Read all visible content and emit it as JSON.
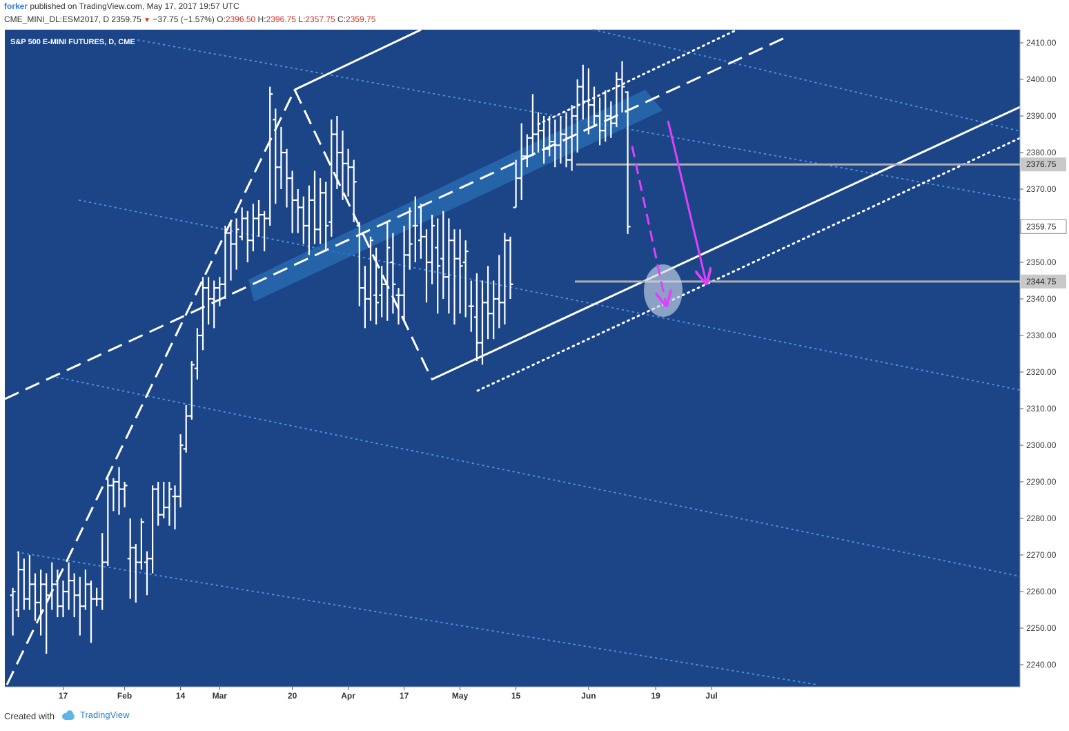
{
  "header": {
    "author": "forker",
    "published": "published on TradingView.com, May 17, 2017 19:57 UTC",
    "symbol": "CME_MINI_DL:ESM2017, D",
    "last": "2359.75",
    "change_arrow": "▼",
    "change": "−37.75 (−1.57%)",
    "open_label": "O:",
    "open": "2396.50",
    "high_label": "H:",
    "high": "2396.75",
    "low_label": "L:",
    "low": "2357.75",
    "close_label": "C:",
    "close": "2359.75"
  },
  "footer": {
    "created_with": "Created with",
    "brand": "TradingView"
  },
  "colors": {
    "background": "#1c4587",
    "bars": "#ffffff",
    "dotted_lines": "#4a90e2",
    "channel_band": "#2a6fb5",
    "horizontal_lines": "#b0b0b0",
    "arrows": "#e040fb",
    "highlight": "#c8d4e6"
  },
  "chart_data": {
    "type": "ohlc",
    "title": "S&P 500 E-MINI FUTURES, D, CME",
    "ylim": [
      2233,
      2415
    ],
    "y_ticks": [
      2410,
      2400,
      2390,
      2380,
      2370,
      2360,
      2350,
      2340,
      2330,
      2320,
      2310,
      2300,
      2290,
      2280,
      2270,
      2260,
      2250,
      2240
    ],
    "x_ticks": [
      {
        "day": 10,
        "label": "17"
      },
      {
        "day": 21,
        "label": "Feb"
      },
      {
        "day": 31,
        "label": "14"
      },
      {
        "day": 38,
        "label": "Mar"
      },
      {
        "day": 51,
        "label": "20"
      },
      {
        "day": 61,
        "label": "Apr"
      },
      {
        "day": 71,
        "label": "17"
      },
      {
        "day": 81,
        "label": "May"
      },
      {
        "day": 91,
        "label": "15"
      },
      {
        "day": 104,
        "label": "Jun"
      },
      {
        "day": 116,
        "label": "19"
      },
      {
        "day": 126,
        "label": "Jul"
      }
    ],
    "ohlc": [
      {
        "day": 1,
        "o": 2259,
        "h": 2261,
        "l": 2248,
        "c": 2260
      },
      {
        "day": 2,
        "o": 2255,
        "h": 2271,
        "l": 2253,
        "c": 2266
      },
      {
        "day": 3,
        "o": 2266,
        "h": 2269,
        "l": 2255,
        "c": 2258
      },
      {
        "day": 4,
        "o": 2258,
        "h": 2270,
        "l": 2255,
        "c": 2262
      },
      {
        "day": 5,
        "o": 2262,
        "h": 2265,
        "l": 2252,
        "c": 2257
      },
      {
        "day": 6,
        "o": 2257,
        "h": 2266,
        "l": 2248,
        "c": 2262
      },
      {
        "day": 7,
        "o": 2262,
        "h": 2265,
        "l": 2243,
        "c": 2259
      },
      {
        "day": 8,
        "o": 2259,
        "h": 2268,
        "l": 2255,
        "c": 2262
      },
      {
        "day": 9,
        "o": 2262,
        "h": 2266,
        "l": 2253,
        "c": 2256
      },
      {
        "day": 10,
        "o": 2256,
        "h": 2263,
        "l": 2253,
        "c": 2260
      },
      {
        "day": 11,
        "o": 2260,
        "h": 2268,
        "l": 2255,
        "c": 2263
      },
      {
        "day": 12,
        "o": 2263,
        "h": 2265,
        "l": 2253,
        "c": 2259
      },
      {
        "day": 13,
        "o": 2259,
        "h": 2264,
        "l": 2248,
        "c": 2256
      },
      {
        "day": 14,
        "o": 2256,
        "h": 2266,
        "l": 2255,
        "c": 2262
      },
      {
        "day": 15,
        "o": 2262,
        "h": 2263,
        "l": 2246,
        "c": 2258
      },
      {
        "day": 16,
        "o": 2258,
        "h": 2261,
        "l": 2256,
        "c": 2258
      },
      {
        "day": 17,
        "o": 2258,
        "h": 2276,
        "l": 2255,
        "c": 2268
      },
      {
        "day": 18,
        "o": 2268,
        "h": 2291,
        "l": 2267,
        "c": 2289
      },
      {
        "day": 19,
        "o": 2289,
        "h": 2291,
        "l": 2282,
        "c": 2290
      },
      {
        "day": 20,
        "o": 2290,
        "h": 2294,
        "l": 2281,
        "c": 2288
      },
      {
        "day": 21,
        "o": 2288,
        "h": 2290,
        "l": 2283,
        "c": 2289
      },
      {
        "day": 22,
        "o": 2269,
        "h": 2280,
        "l": 2258,
        "c": 2272
      },
      {
        "day": 23,
        "o": 2272,
        "h": 2273,
        "l": 2257,
        "c": 2268
      },
      {
        "day": 24,
        "o": 2268,
        "h": 2280,
        "l": 2266,
        "c": 2279
      },
      {
        "day": 25,
        "o": 2268,
        "h": 2271,
        "l": 2259,
        "c": 2269
      },
      {
        "day": 26,
        "o": 2269,
        "h": 2289,
        "l": 2265,
        "c": 2288
      },
      {
        "day": 27,
        "o": 2288,
        "h": 2290,
        "l": 2278,
        "c": 2281
      },
      {
        "day": 28,
        "o": 2281,
        "h": 2290,
        "l": 2280,
        "c": 2283
      },
      {
        "day": 29,
        "o": 2283,
        "h": 2290,
        "l": 2278,
        "c": 2288
      },
      {
        "day": 30,
        "o": 2286,
        "h": 2289,
        "l": 2277,
        "c": 2286
      },
      {
        "day": 31,
        "o": 2286,
        "h": 2303,
        "l": 2283,
        "c": 2300
      },
      {
        "day": 32,
        "o": 2299,
        "h": 2311,
        "l": 2298,
        "c": 2308
      },
      {
        "day": 33,
        "o": 2308,
        "h": 2323,
        "l": 2307,
        "c": 2322
      },
      {
        "day": 34,
        "o": 2321,
        "h": 2332,
        "l": 2318,
        "c": 2330
      },
      {
        "day": 35,
        "o": 2330,
        "h": 2346,
        "l": 2326,
        "c": 2343
      },
      {
        "day": 36,
        "o": 2343,
        "h": 2346,
        "l": 2333,
        "c": 2340
      },
      {
        "day": 37,
        "o": 2340,
        "h": 2345,
        "l": 2332,
        "c": 2343
      },
      {
        "day": 38,
        "o": 2343,
        "h": 2346,
        "l": 2338,
        "c": 2344
      },
      {
        "day": 39,
        "o": 2344,
        "h": 2360,
        "l": 2340,
        "c": 2358
      },
      {
        "day": 40,
        "o": 2358,
        "h": 2361,
        "l": 2345,
        "c": 2355
      },
      {
        "day": 41,
        "o": 2355,
        "h": 2362,
        "l": 2348,
        "c": 2359
      },
      {
        "day": 42,
        "o": 2357,
        "h": 2365,
        "l": 2356,
        "c": 2362
      },
      {
        "day": 43,
        "o": 2362,
        "h": 2364,
        "l": 2350,
        "c": 2356
      },
      {
        "day": 44,
        "o": 2356,
        "h": 2366,
        "l": 2353,
        "c": 2362
      },
      {
        "day": 45,
        "o": 2362,
        "h": 2367,
        "l": 2357,
        "c": 2363
      },
      {
        "day": 46,
        "o": 2363,
        "h": 2364,
        "l": 2353,
        "c": 2362
      },
      {
        "day": 47,
        "o": 2362,
        "h": 2398,
        "l": 2360,
        "c": 2396
      },
      {
        "day": 48,
        "o": 2389,
        "h": 2392,
        "l": 2366,
        "c": 2376
      },
      {
        "day": 49,
        "o": 2376,
        "h": 2387,
        "l": 2370,
        "c": 2380
      },
      {
        "day": 50,
        "o": 2380,
        "h": 2381,
        "l": 2365,
        "c": 2373
      },
      {
        "day": 51,
        "o": 2373,
        "h": 2375,
        "l": 2358,
        "c": 2367
      },
      {
        "day": 52,
        "o": 2367,
        "h": 2370,
        "l": 2358,
        "c": 2365
      },
      {
        "day": 53,
        "o": 2365,
        "h": 2368,
        "l": 2355,
        "c": 2360
      },
      {
        "day": 54,
        "o": 2360,
        "h": 2371,
        "l": 2352,
        "c": 2367
      },
      {
        "day": 55,
        "o": 2367,
        "h": 2375,
        "l": 2355,
        "c": 2359
      },
      {
        "day": 56,
        "o": 2359,
        "h": 2373,
        "l": 2355,
        "c": 2369
      },
      {
        "day": 57,
        "o": 2369,
        "h": 2372,
        "l": 2353,
        "c": 2360
      },
      {
        "day": 58,
        "o": 2361,
        "h": 2389,
        "l": 2357,
        "c": 2385
      },
      {
        "day": 59,
        "o": 2385,
        "h": 2390,
        "l": 2370,
        "c": 2380
      },
      {
        "day": 60,
        "o": 2380,
        "h": 2386,
        "l": 2367,
        "c": 2377
      },
      {
        "day": 61,
        "o": 2377,
        "h": 2381,
        "l": 2368,
        "c": 2376
      },
      {
        "day": 62,
        "o": 2376,
        "h": 2378,
        "l": 2361,
        "c": 2372
      },
      {
        "day": 63,
        "o": 2360,
        "h": 2361,
        "l": 2338,
        "c": 2343
      },
      {
        "day": 64,
        "o": 2343,
        "h": 2349,
        "l": 2332,
        "c": 2340
      },
      {
        "day": 65,
        "o": 2340,
        "h": 2357,
        "l": 2334,
        "c": 2356
      },
      {
        "day": 66,
        "o": 2341,
        "h": 2354,
        "l": 2333,
        "c": 2339
      },
      {
        "day": 67,
        "o": 2341,
        "h": 2349,
        "l": 2335,
        "c": 2344
      },
      {
        "day": 68,
        "o": 2344,
        "h": 2361,
        "l": 2334,
        "c": 2354
      },
      {
        "day": 69,
        "o": 2350,
        "h": 2358,
        "l": 2336,
        "c": 2344
      },
      {
        "day": 70,
        "o": 2341,
        "h": 2343,
        "l": 2333,
        "c": 2341
      },
      {
        "day": 71,
        "o": 2341,
        "h": 2360,
        "l": 2334,
        "c": 2352
      },
      {
        "day": 72,
        "o": 2352,
        "h": 2365,
        "l": 2348,
        "c": 2355
      },
      {
        "day": 73,
        "o": 2360,
        "h": 2368,
        "l": 2350,
        "c": 2360
      },
      {
        "day": 74,
        "o": 2356,
        "h": 2366,
        "l": 2351,
        "c": 2357
      },
      {
        "day": 75,
        "o": 2357,
        "h": 2359,
        "l": 2339,
        "c": 2350
      },
      {
        "day": 76,
        "o": 2350,
        "h": 2363,
        "l": 2344,
        "c": 2360
      },
      {
        "day": 77,
        "o": 2354,
        "h": 2362,
        "l": 2336,
        "c": 2349
      },
      {
        "day": 78,
        "o": 2351,
        "h": 2364,
        "l": 2340,
        "c": 2346
      },
      {
        "day": 79,
        "o": 2346,
        "h": 2362,
        "l": 2336,
        "c": 2356
      },
      {
        "day": 80,
        "o": 2356,
        "h": 2359,
        "l": 2333,
        "c": 2351
      },
      {
        "day": 81,
        "o": 2351,
        "h": 2359,
        "l": 2336,
        "c": 2349
      },
      {
        "day": 82,
        "o": 2350,
        "h": 2356,
        "l": 2335,
        "c": 2353
      },
      {
        "day": 83,
        "o": 2338,
        "h": 2345,
        "l": 2331,
        "c": 2338
      },
      {
        "day": 84,
        "o": 2335,
        "h": 2347,
        "l": 2323,
        "c": 2328
      },
      {
        "day": 85,
        "o": 2328,
        "h": 2345,
        "l": 2322,
        "c": 2339
      },
      {
        "day": 86,
        "o": 2339,
        "h": 2349,
        "l": 2329,
        "c": 2336
      },
      {
        "day": 87,
        "o": 2336,
        "h": 2345,
        "l": 2329,
        "c": 2340
      },
      {
        "day": 88,
        "o": 2340,
        "h": 2352,
        "l": 2332,
        "c": 2339
      },
      {
        "day": 89,
        "o": 2339,
        "h": 2358,
        "l": 2333,
        "c": 2356
      },
      {
        "day": 90,
        "o": 2356,
        "h": 2357,
        "l": 2340,
        "c": 2344
      },
      {
        "day": 91,
        "o": 2365,
        "h": 2378,
        "l": 2365,
        "c": 2373
      },
      {
        "day": 92,
        "o": 2373,
        "h": 2388,
        "l": 2367,
        "c": 2379
      },
      {
        "day": 93,
        "o": 2379,
        "h": 2385,
        "l": 2376,
        "c": 2384
      },
      {
        "day": 94,
        "o": 2384,
        "h": 2396,
        "l": 2379,
        "c": 2385
      },
      {
        "day": 95,
        "o": 2385,
        "h": 2391,
        "l": 2380,
        "c": 2386
      },
      {
        "day": 96,
        "o": 2386,
        "h": 2390,
        "l": 2377,
        "c": 2381
      },
      {
        "day": 97,
        "o": 2381,
        "h": 2390,
        "l": 2379,
        "c": 2383
      },
      {
        "day": 98,
        "o": 2383,
        "h": 2389,
        "l": 2376,
        "c": 2382
      },
      {
        "day": 99,
        "o": 2382,
        "h": 2390,
        "l": 2377,
        "c": 2385
      },
      {
        "day": 100,
        "o": 2385,
        "h": 2391,
        "l": 2376,
        "c": 2378
      },
      {
        "day": 101,
        "o": 2378,
        "h": 2393,
        "l": 2375,
        "c": 2390
      },
      {
        "day": 102,
        "o": 2390,
        "h": 2400,
        "l": 2380,
        "c": 2398
      },
      {
        "day": 103,
        "o": 2398,
        "h": 2404,
        "l": 2389,
        "c": 2394
      },
      {
        "day": 104,
        "o": 2394,
        "h": 2403,
        "l": 2385,
        "c": 2393
      },
      {
        "day": 105,
        "o": 2393,
        "h": 2398,
        "l": 2387,
        "c": 2390
      },
      {
        "day": 106,
        "o": 2390,
        "h": 2395,
        "l": 2382,
        "c": 2386
      },
      {
        "day": 107,
        "o": 2386,
        "h": 2397,
        "l": 2383,
        "c": 2390
      },
      {
        "day": 108,
        "o": 2390,
        "h": 2394,
        "l": 2384,
        "c": 2388
      },
      {
        "day": 109,
        "o": 2388,
        "h": 2402,
        "l": 2387,
        "c": 2400
      },
      {
        "day": 110,
        "o": 2400,
        "h": 2405,
        "l": 2391,
        "c": 2398
      },
      {
        "day": 111,
        "o": 2396.5,
        "h": 2396.75,
        "l": 2357.75,
        "c": 2359.75
      }
    ],
    "horizontal_levels": [
      {
        "value": 2376.75,
        "label": "2376.75"
      },
      {
        "value": 2344.75,
        "label": "2344.75"
      }
    ],
    "last_price_label": "2359.75"
  }
}
